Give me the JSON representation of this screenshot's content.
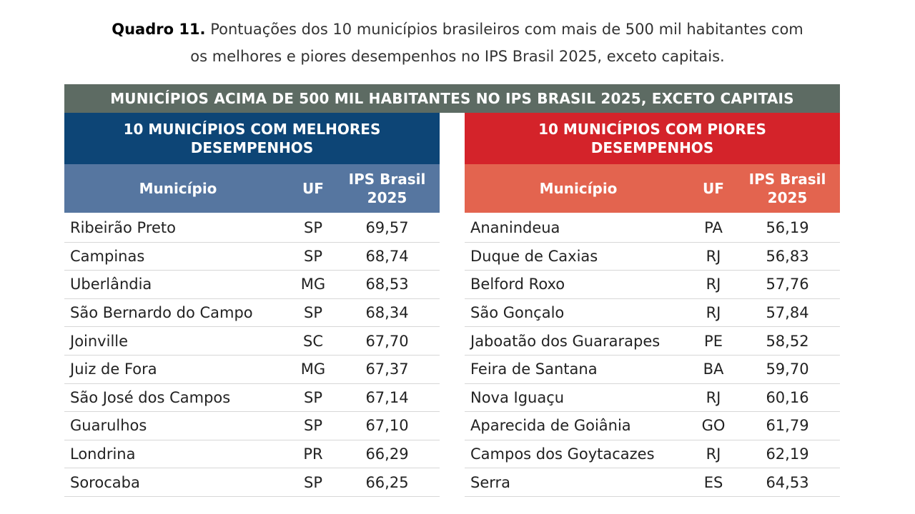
{
  "caption": {
    "label": "Quadro 11.",
    "text_line1": " Pontuações dos 10 municípios brasileiros com mais de 500 mil habitantes com",
    "text_line2": "os melhores e piores desempenhos no IPS Brasil 2025, exceto capitais."
  },
  "banner": "MUNICÍPIOS ACIMA DE 500 MIL HABITANTES NO IPS BRASIL 2025, EXCETO CAPITAIS",
  "best": {
    "title": "10 MUNICÍPIOS COM MELHORES DESEMPENHOS",
    "header_color": "#0d4576",
    "columns": [
      "Município",
      "UF",
      "IPS Brasil 2025"
    ],
    "rows": [
      {
        "municipio": "Ribeirão Preto",
        "uf": "SP",
        "ips": "69,57"
      },
      {
        "municipio": "Campinas",
        "uf": "SP",
        "ips": "68,74"
      },
      {
        "municipio": "Uberlândia",
        "uf": "MG",
        "ips": "68,53"
      },
      {
        "municipio": "São Bernardo do Campo",
        "uf": "SP",
        "ips": "68,34"
      },
      {
        "municipio": "Joinville",
        "uf": "SC",
        "ips": "67,70"
      },
      {
        "municipio": "Juiz de Fora",
        "uf": "MG",
        "ips": "67,37"
      },
      {
        "municipio": "São José dos Campos",
        "uf": "SP",
        "ips": "67,14"
      },
      {
        "municipio": "Guarulhos",
        "uf": "SP",
        "ips": "67,10"
      },
      {
        "municipio": "Londrina",
        "uf": "PR",
        "ips": "66,29"
      },
      {
        "municipio": "Sorocaba",
        "uf": "SP",
        "ips": "66,25"
      }
    ]
  },
  "worst": {
    "title": "10 MUNICÍPIOS COM PIORES DESEMPENHOS",
    "header_color": "#d4232a",
    "columns": [
      "Município",
      "UF",
      "IPS Brasil 2025"
    ],
    "rows": [
      {
        "municipio": "Ananindeua",
        "uf": "PA",
        "ips": "56,19"
      },
      {
        "municipio": "Duque de Caxias",
        "uf": "RJ",
        "ips": "56,83"
      },
      {
        "municipio": "Belford Roxo",
        "uf": "RJ",
        "ips": "57,76"
      },
      {
        "municipio": "São Gonçalo",
        "uf": "RJ",
        "ips": "57,84"
      },
      {
        "municipio": "Jaboatão dos Guararapes",
        "uf": "PE",
        "ips": "58,52"
      },
      {
        "municipio": "Feira de Santana",
        "uf": "BA",
        "ips": "59,70"
      },
      {
        "municipio": "Nova Iguaçu",
        "uf": "RJ",
        "ips": "60,16"
      },
      {
        "municipio": "Aparecida de Goiânia",
        "uf": "GO",
        "ips": "61,79"
      },
      {
        "municipio": "Campos dos Goytacazes",
        "uf": "RJ",
        "ips": "62,19"
      },
      {
        "municipio": "Serra",
        "uf": "ES",
        "ips": "64,53"
      }
    ]
  }
}
